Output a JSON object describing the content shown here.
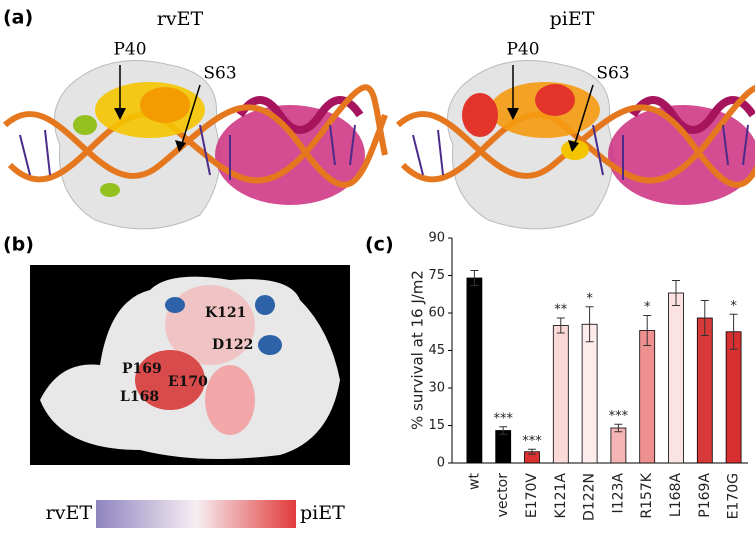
{
  "panels": {
    "a": {
      "label": "(a)",
      "left": {
        "title": "rvET",
        "residues": [
          "P40",
          "S63"
        ]
      },
      "right": {
        "title": "piET",
        "residues": [
          "P40",
          "S63"
        ]
      }
    },
    "b": {
      "label": "(b)",
      "residues": [
        "K121",
        "D122",
        "P169",
        "E170",
        "L168"
      ],
      "scale": {
        "low": "rvET",
        "high": "piET"
      }
    },
    "c": {
      "label": "(c)"
    }
  },
  "chart_data": {
    "type": "bar",
    "y_label": "% survival at 16 J/m2",
    "categories": [
      "wt",
      "vector",
      "E170V",
      "K121A",
      "D122N",
      "I123A",
      "R157K",
      "L168A",
      "P169A",
      "E170G"
    ],
    "values": [
      74,
      13,
      4.5,
      55,
      55.5,
      14,
      53,
      68,
      58,
      52.5
    ],
    "errors": [
      3,
      1.5,
      1,
      3,
      7,
      1.5,
      6,
      5,
      7,
      7
    ],
    "annotations": [
      null,
      "***",
      "***",
      "**",
      "*",
      "***",
      "*",
      null,
      null,
      "*"
    ],
    "colors": [
      "#000000",
      "#000000",
      "#d93030",
      "#fbd9d9",
      "#fdecec",
      "#f5b5b5",
      "#ef9090",
      "#fce3e3",
      "#d83a3a",
      "#d83030"
    ],
    "ylim": [
      0,
      90
    ],
    "yticks": [
      0,
      15,
      30,
      45,
      60,
      75,
      90
    ]
  }
}
